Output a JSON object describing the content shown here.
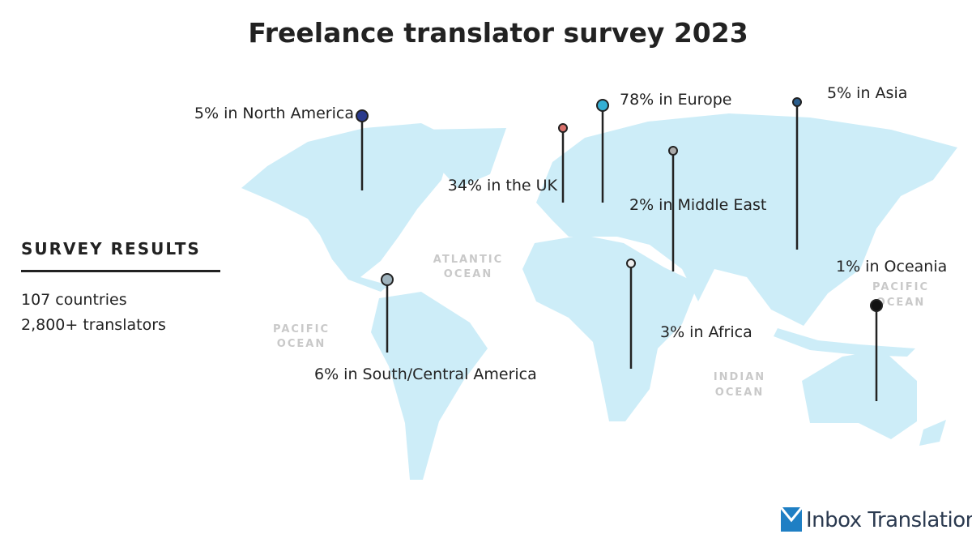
{
  "title": "Freelance translator survey 2023",
  "summary": {
    "heading": "SURVEY RESULTS",
    "lines": [
      "107 countries",
      "2,800+ translators"
    ]
  },
  "pins": [
    {
      "label": "5% in North America"
    },
    {
      "label": "34% in the UK"
    },
    {
      "label": "78% in Europe"
    },
    {
      "label": "2% in Middle East"
    },
    {
      "label": "5% in Asia"
    },
    {
      "label": "1% in Oceania"
    },
    {
      "label": "3% in Africa"
    },
    {
      "label": "6% in South/Central America"
    }
  ],
  "oceans": [
    {
      "lines": [
        "ATLANTIC",
        "OCEAN"
      ]
    },
    {
      "lines": [
        "PACIFIC",
        "OCEAN"
      ]
    },
    {
      "lines": [
        "INDIAN",
        "OCEAN"
      ]
    },
    {
      "lines": [
        "PACIFIC",
        "OCEAN"
      ]
    }
  ],
  "logo": "Inbox Translation"
}
